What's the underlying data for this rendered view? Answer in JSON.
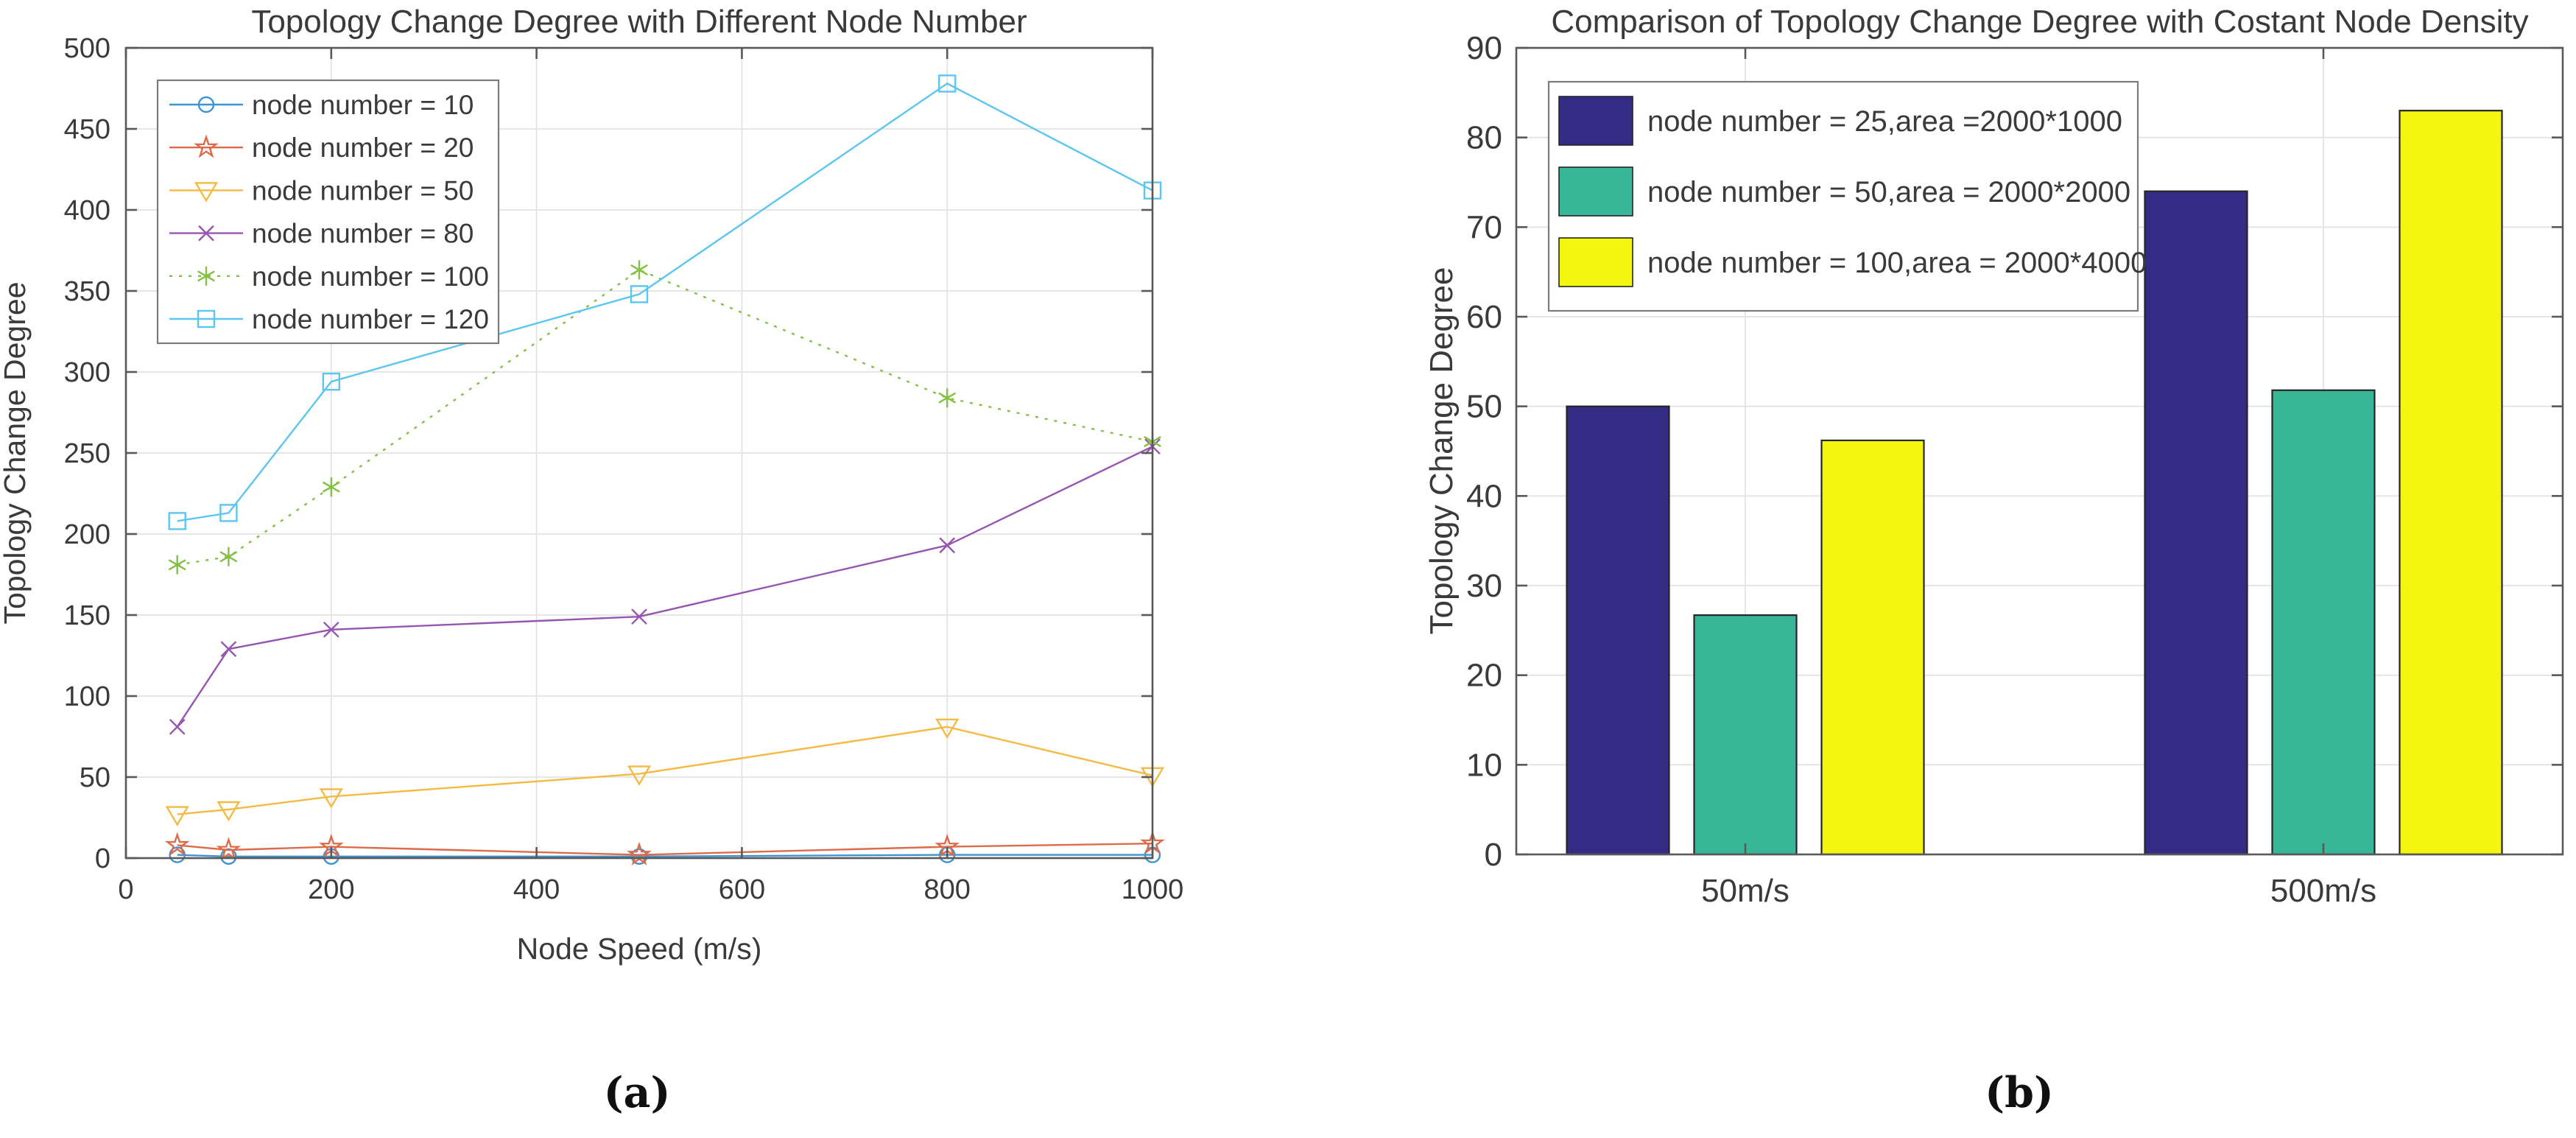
{
  "figure": {
    "panel_a_label": "(a)",
    "panel_b_label": "(b)"
  },
  "colors": {
    "axis_box": "#595959",
    "grid": "#e3e3e3",
    "text": "#3a3a3a",
    "legend_border": "#7b7b7b",
    "bar_edge": "#262626"
  },
  "chart_data": [
    {
      "id": "line_chart",
      "type": "line",
      "title": "Topology Change Degree with Different Node Number",
      "xlabel": "Node Speed (m/s)",
      "ylabel": "Topology Change Degree",
      "xlim": [
        0,
        1000
      ],
      "ylim": [
        0,
        500
      ],
      "xticks": [
        0,
        200,
        400,
        600,
        800,
        1000
      ],
      "yticks": [
        0,
        50,
        100,
        150,
        200,
        250,
        300,
        350,
        400,
        450,
        500
      ],
      "grid": true,
      "legend_position": "top-left",
      "x": [
        50,
        100,
        200,
        500,
        800,
        1000
      ],
      "series": [
        {
          "name": "node number = 10",
          "color": "#3d94d1",
          "marker": "circle",
          "line": "solid",
          "values": [
            2,
            1,
            1,
            1,
            2,
            2
          ]
        },
        {
          "name": "node number = 20",
          "color": "#dd6b4a",
          "marker": "pentagram",
          "line": "solid",
          "values": [
            8,
            5,
            7,
            2,
            7,
            9
          ]
        },
        {
          "name": "node number = 50",
          "color": "#f3bb45",
          "marker": "triangle-down",
          "line": "solid",
          "values": [
            27,
            30,
            38,
            52,
            81,
            51
          ]
        },
        {
          "name": "node number = 80",
          "color": "#9655b0",
          "marker": "x",
          "line": "solid",
          "values": [
            81,
            129,
            141,
            149,
            193,
            254
          ]
        },
        {
          "name": "node number = 100",
          "color": "#83c044",
          "marker": "asterisk",
          "line": "dotted",
          "values": [
            181,
            186,
            229,
            363,
            284,
            257
          ]
        },
        {
          "name": "node number = 120",
          "color": "#5cc5f0",
          "marker": "square",
          "line": "solid",
          "values": [
            208,
            213,
            294,
            348,
            478,
            412
          ]
        }
      ]
    },
    {
      "id": "bar_chart",
      "type": "bar",
      "title": "Comparison of Topology Change Degree with Costant Node Density",
      "xlabel": "",
      "ylabel": "Topology Change Degree",
      "ylim": [
        0,
        90
      ],
      "yticks": [
        0,
        10,
        20,
        30,
        40,
        50,
        60,
        70,
        80,
        90
      ],
      "grid": true,
      "legend_position": "top-left",
      "categories": [
        "50m/s",
        "500m/s"
      ],
      "series": [
        {
          "name": "node number = 25,area =2000*1000",
          "color": "#342b85",
          "values": [
            50,
            74
          ]
        },
        {
          "name": "node number = 50,area = 2000*2000",
          "color": "#38b698",
          "values": [
            26.7,
            51.8
          ]
        },
        {
          "name": "node number = 100,area = 2000*4000",
          "color": "#f4f60f",
          "values": [
            46.2,
            83
          ]
        }
      ]
    }
  ]
}
